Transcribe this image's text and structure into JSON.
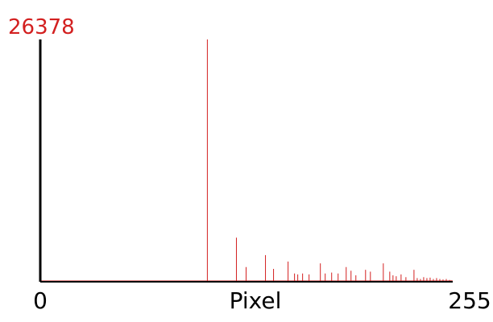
{
  "chart_data": {
    "type": "bar",
    "title": "",
    "xlabel": "Pixel",
    "ylabel": "",
    "max_label": "26378",
    "x_tick_labels": [
      "0",
      "255"
    ],
    "xlim": [
      0,
      255
    ],
    "ylim": [
      0,
      26378
    ],
    "grid": false,
    "bar_color": "#d32020",
    "axis_color": "#000000",
    "x": [
      103,
      121,
      127,
      139,
      144,
      153,
      157,
      159,
      162,
      166,
      173,
      176,
      180,
      184,
      189,
      192,
      195,
      201,
      204,
      212,
      216,
      218,
      220,
      223,
      226,
      231,
      233,
      235,
      237,
      239,
      241,
      243,
      245,
      247,
      249,
      251,
      253,
      254
    ],
    "values": [
      26378,
      4800,
      1600,
      2900,
      1400,
      2200,
      900,
      800,
      900,
      800,
      2000,
      900,
      1000,
      900,
      1600,
      1200,
      700,
      1300,
      1100,
      2000,
      1100,
      700,
      600,
      800,
      500,
      1300,
      400,
      300,
      500,
      400,
      450,
      300,
      400,
      300,
      250,
      300,
      200,
      150
    ]
  }
}
